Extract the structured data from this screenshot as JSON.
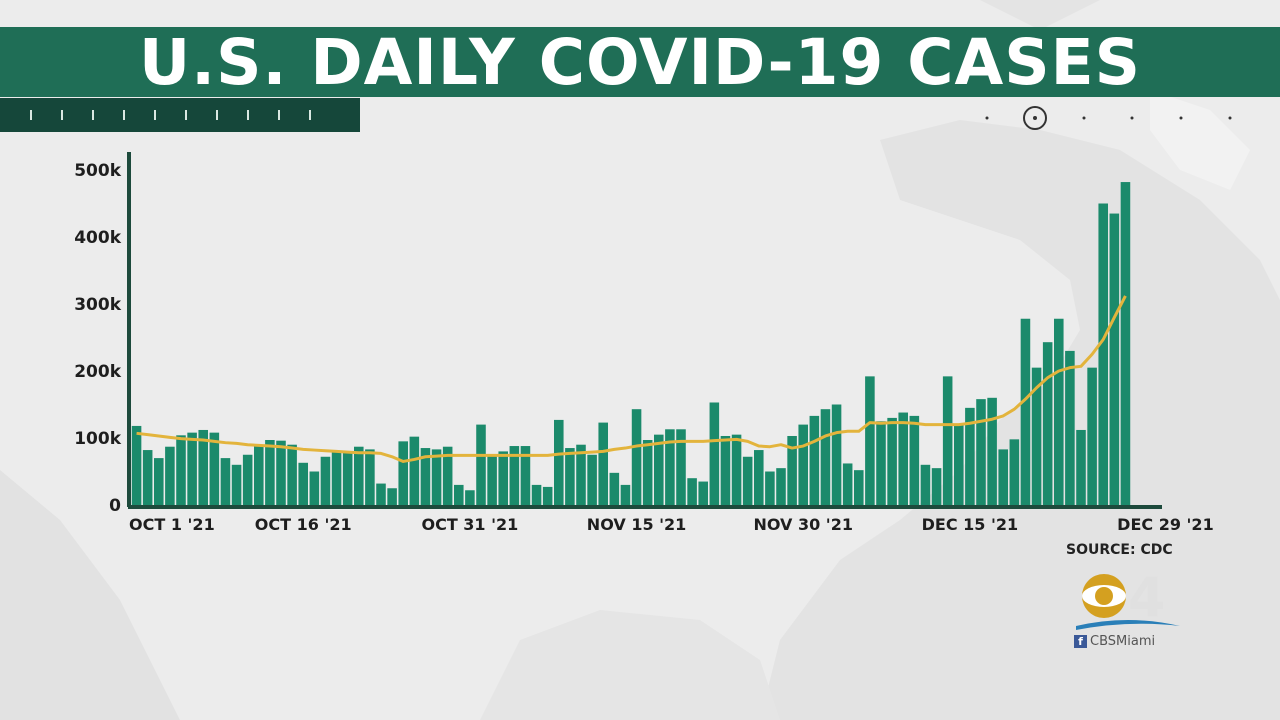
{
  "header": {
    "title": "U.S. DAILY COVID-19 CASES"
  },
  "footer": {
    "source": "SOURCE: CDC",
    "station_hashtag": "CBSMiami",
    "station_logo_icon": "cbs-eye-4-logo-icon"
  },
  "colors": {
    "band": "#1f6e56",
    "bar": "#1b8a6b",
    "average_line": "#e3b43c",
    "axis": "#1d4a3c"
  },
  "chart_data": {
    "type": "bar",
    "title": "U.S. DAILY COVID-19 CASES",
    "xlabel": "",
    "ylabel": "",
    "ylim": [
      0,
      500000
    ],
    "yticks": [
      0,
      100000,
      200000,
      300000,
      400000,
      500000
    ],
    "ytick_labels": [
      "0",
      "100k",
      "200k",
      "300k",
      "400k",
      "500k"
    ],
    "xtick_labels": [
      {
        "label": "OCT 1 '21",
        "index": 0
      },
      {
        "label": "OCT 16 '21",
        "index": 15
      },
      {
        "label": "OCT 31 '21",
        "index": 30
      },
      {
        "label": "NOV 15 '21",
        "index": 45
      },
      {
        "label": "NOV 30 '21",
        "index": 60
      },
      {
        "label": "DEC 15 '21",
        "index": 75
      },
      {
        "label": "DEC 29 '21",
        "index": 89
      }
    ],
    "categories": [
      "Oct 1",
      "Oct 2",
      "Oct 3",
      "Oct 4",
      "Oct 5",
      "Oct 6",
      "Oct 7",
      "Oct 8",
      "Oct 9",
      "Oct 10",
      "Oct 11",
      "Oct 12",
      "Oct 13",
      "Oct 14",
      "Oct 15",
      "Oct 16",
      "Oct 17",
      "Oct 18",
      "Oct 19",
      "Oct 20",
      "Oct 21",
      "Oct 22",
      "Oct 23",
      "Oct 24",
      "Oct 25",
      "Oct 26",
      "Oct 27",
      "Oct 28",
      "Oct 29",
      "Oct 30",
      "Oct 31",
      "Nov 1",
      "Nov 2",
      "Nov 3",
      "Nov 4",
      "Nov 5",
      "Nov 6",
      "Nov 7",
      "Nov 8",
      "Nov 9",
      "Nov 10",
      "Nov 11",
      "Nov 12",
      "Nov 13",
      "Nov 14",
      "Nov 15",
      "Nov 16",
      "Nov 17",
      "Nov 18",
      "Nov 19",
      "Nov 20",
      "Nov 21",
      "Nov 22",
      "Nov 23",
      "Nov 24",
      "Nov 25",
      "Nov 26",
      "Nov 27",
      "Nov 28",
      "Nov 29",
      "Nov 30",
      "Dec 1",
      "Dec 2",
      "Dec 3",
      "Dec 4",
      "Dec 5",
      "Dec 6",
      "Dec 7",
      "Dec 8",
      "Dec 9",
      "Dec 10",
      "Dec 11",
      "Dec 12",
      "Dec 13",
      "Dec 14",
      "Dec 15",
      "Dec 16",
      "Dec 17",
      "Dec 18",
      "Dec 19",
      "Dec 20",
      "Dec 21",
      "Dec 22",
      "Dec 23",
      "Dec 24",
      "Dec 25",
      "Dec 26",
      "Dec 27",
      "Dec 28",
      "Dec 29"
    ],
    "series": [
      {
        "type": "bar",
        "values": [
          118000,
          82000,
          70000,
          87000,
          104000,
          108000,
          112000,
          108000,
          70000,
          60000,
          75000,
          88000,
          97000,
          96000,
          90000,
          63000,
          50000,
          72000,
          80000,
          80000,
          87000,
          83000,
          32000,
          25000,
          95000,
          102000,
          85000,
          83000,
          87000,
          30000,
          22000,
          120000,
          73000,
          80000,
          88000,
          88000,
          30000,
          27000,
          127000,
          85000,
          90000,
          75000,
          123000,
          48000,
          30000,
          143000,
          97000,
          105000,
          113000,
          113000,
          40000,
          35000,
          153000,
          103000,
          105000,
          72000,
          82000,
          50000,
          55000,
          103000,
          120000,
          133000,
          143000,
          150000,
          62000,
          52000,
          192000,
          125000,
          130000,
          138000,
          133000,
          60000,
          55000,
          192000,
          120000,
          145000,
          158000,
          160000,
          83000,
          98000,
          278000,
          205000,
          243000,
          278000,
          230000,
          112000,
          205000,
          450000,
          435000,
          482000
        ]
      },
      {
        "type": "line",
        "values": [
          107000,
          105000,
          103000,
          101000,
          99000,
          98000,
          97000,
          95000,
          93000,
          92000,
          90000,
          89000,
          88000,
          87000,
          85000,
          83000,
          82000,
          81000,
          80000,
          79000,
          78000,
          78000,
          77000,
          72000,
          65000,
          68000,
          72000,
          73000,
          74000,
          74000,
          74000,
          74000,
          74000,
          74000,
          74000,
          74000,
          74000,
          74000,
          76000,
          77000,
          78000,
          79000,
          80000,
          83000,
          85000,
          88000,
          90000,
          92000,
          94000,
          95000,
          95000,
          95000,
          96000,
          97000,
          98000,
          95000,
          88000,
          87000,
          90000,
          85000,
          88000,
          95000,
          103000,
          108000,
          110000,
          110000,
          123000,
          122000,
          123000,
          123000,
          122000,
          120000,
          120000,
          120000,
          120000,
          122000,
          125000,
          128000,
          133000,
          143000,
          158000,
          175000,
          190000,
          200000,
          205000,
          207000,
          225000,
          247000,
          280000,
          312000
        ]
      }
    ]
  }
}
